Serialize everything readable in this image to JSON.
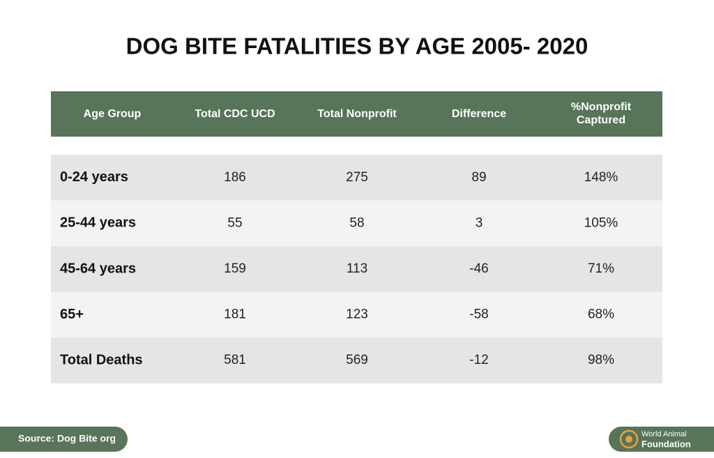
{
  "title": "DOG BITE FATALITIES BY AGE 2005- 2020",
  "table": {
    "header": [
      "Age Group",
      "Total CDC UCD",
      "Total Nonprofit",
      "Difference",
      [
        "%Nonprofit",
        "Captured"
      ]
    ],
    "rows": [
      [
        "0-24 years",
        "186",
        "275",
        "89",
        "148%"
      ],
      [
        "25-44 years",
        "55",
        "58",
        "3",
        "105%"
      ],
      [
        "45-64 years",
        "159",
        "113",
        "-46",
        "71%"
      ],
      [
        "65+",
        "181",
        "123",
        "-58",
        "68%"
      ],
      [
        "Total Deaths",
        "581",
        "569",
        "-12",
        "98%"
      ]
    ]
  },
  "source": "Source: Dog Bite org",
  "logo": [
    "World Animal",
    "Foundation"
  ]
}
